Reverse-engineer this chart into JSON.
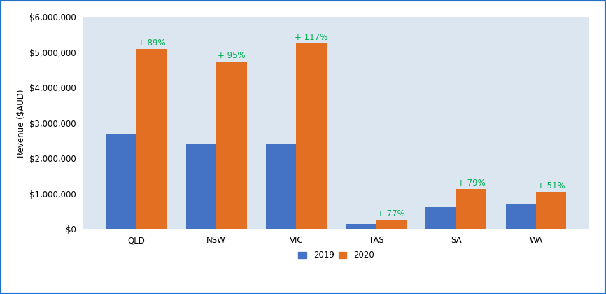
{
  "categories": [
    "QLD",
    "NSW",
    "VIC",
    "TAS",
    "SA",
    "WA"
  ],
  "values_2019": [
    2700000,
    2430000,
    2420000,
    150000,
    640000,
    700000
  ],
  "values_2020": [
    5090000,
    4730000,
    5260000,
    265000,
    1145000,
    1060000
  ],
  "pct_labels": [
    "+ 89%",
    "+ 95%",
    "+ 117%",
    "+ 77%",
    "+ 79%",
    "+ 51%"
  ],
  "color_2019": "#4472c4",
  "color_2020": "#e36f22",
  "label_color": "#00b050",
  "ylabel": "Revenue ($AUD)",
  "ylim": [
    0,
    6000000
  ],
  "ytick_step": 1000000,
  "legend_labels": [
    "2019",
    "2020"
  ],
  "border_color": "#2472c8",
  "plot_bg_color": "#dce6f1",
  "fig_bg_color": "#ffffff",
  "label_fontsize": 8.5,
  "axis_fontsize": 8.5,
  "legend_fontsize": 8.5,
  "bar_width": 0.38
}
